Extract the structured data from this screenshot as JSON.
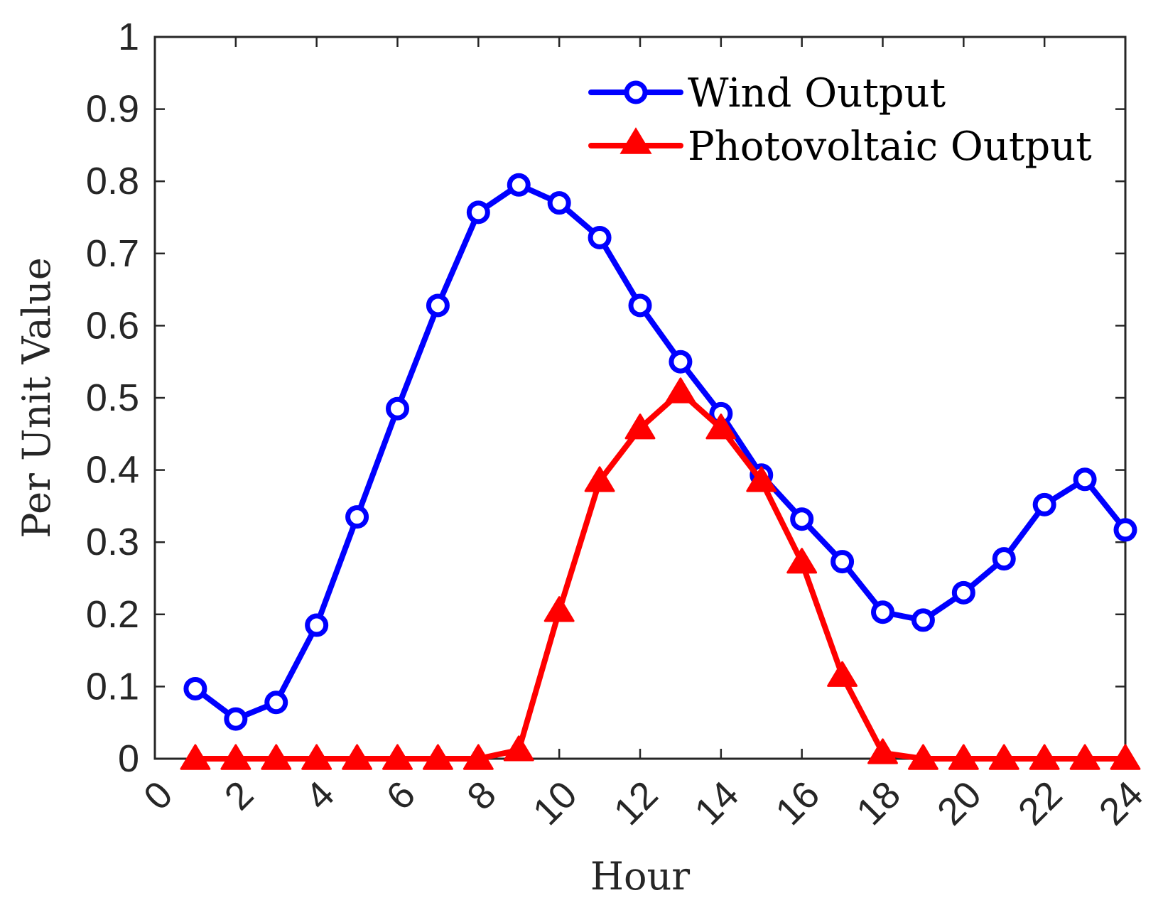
{
  "chart_data": {
    "type": "line",
    "title": "",
    "xlabel": "Hour",
    "ylabel": "Per Unit Value",
    "xlim": [
      0,
      24
    ],
    "ylim": [
      0,
      1
    ],
    "x_ticks": [
      "0",
      "2",
      "4",
      "6",
      "8",
      "10",
      "12",
      "14",
      "16",
      "18",
      "20",
      "22",
      "24"
    ],
    "y_ticks": [
      "0",
      "0.1",
      "0.2",
      "0.3",
      "0.4",
      "0.5",
      "0.6",
      "0.7",
      "0.8",
      "0.9",
      "1"
    ],
    "grid": false,
    "legend_position": "top-right",
    "x": [
      1,
      2,
      3,
      4,
      5,
      6,
      7,
      8,
      9,
      10,
      11,
      12,
      13,
      14,
      15,
      16,
      17,
      18,
      19,
      20,
      21,
      22,
      23,
      24
    ],
    "series": [
      {
        "name": "Wind Output",
        "color": "#0000ff",
        "marker": "circle",
        "values": [
          0.097,
          0.055,
          0.078,
          0.185,
          0.335,
          0.485,
          0.628,
          0.757,
          0.795,
          0.77,
          0.722,
          0.628,
          0.55,
          0.478,
          0.393,
          0.332,
          0.273,
          0.203,
          0.192,
          0.23,
          0.277,
          0.352,
          0.387,
          0.317
        ]
      },
      {
        "name": "Photovoltaic Output",
        "color": "#ff0000",
        "marker": "triangle",
        "values": [
          0,
          0,
          0,
          0,
          0,
          0,
          0,
          0,
          0.012,
          0.205,
          0.385,
          0.458,
          0.508,
          0.458,
          0.385,
          0.272,
          0.115,
          0.008,
          0,
          0,
          0,
          0,
          0,
          0
        ]
      }
    ]
  }
}
